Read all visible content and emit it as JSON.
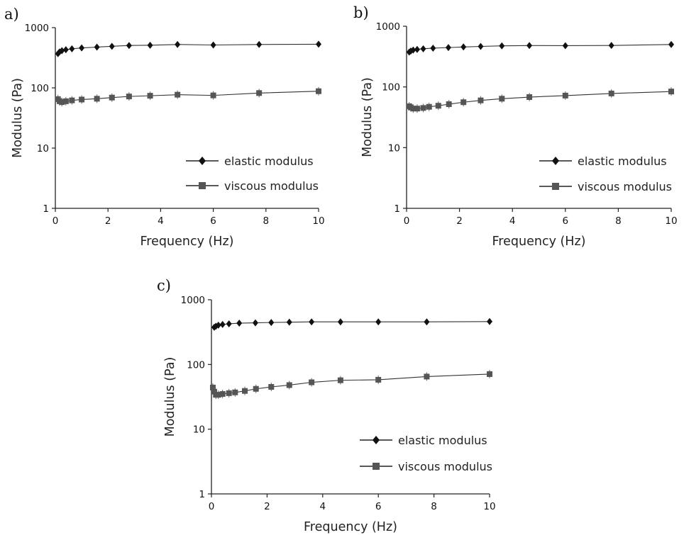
{
  "chart_data": [
    {
      "panel": "a)",
      "type": "line",
      "xlabel": "Frequency (Hz)",
      "ylabel": "Modulus (Pa)",
      "xlim": [
        0,
        10
      ],
      "ylim": [
        1,
        1000
      ],
      "yscale": "log",
      "xticks": [
        "0",
        "2",
        "4",
        "6",
        "8",
        "10"
      ],
      "yticks": [
        "1",
        "10",
        "100",
        "1000"
      ],
      "grid": false,
      "legend_position": "bottom-right",
      "series": [
        {
          "name": "elastic modulus",
          "marker": "diamond",
          "color": "#111111",
          "x": [
            0.1,
            0.16,
            0.25,
            0.4,
            0.63,
            1.0,
            1.58,
            2.15,
            2.8,
            3.6,
            4.64,
            6.0,
            7.74,
            10.0
          ],
          "y": [
            370,
            395,
            415,
            430,
            445,
            460,
            475,
            490,
            505,
            510,
            525,
            515,
            525,
            530
          ]
        },
        {
          "name": "viscous modulus",
          "marker": "square",
          "color": "#555555",
          "x": [
            0.1,
            0.16,
            0.25,
            0.4,
            0.63,
            1.0,
            1.58,
            2.15,
            2.8,
            3.6,
            4.64,
            6.0,
            7.74,
            10.0
          ],
          "y": [
            65,
            60,
            58,
            60,
            62,
            64,
            66,
            69,
            72,
            74,
            77,
            75,
            82,
            88
          ]
        }
      ]
    },
    {
      "panel": "b)",
      "type": "line",
      "xlabel": "Frequency (Hz)",
      "ylabel": "Modulus (Pa)",
      "xlim": [
        0,
        10
      ],
      "ylim": [
        1,
        1000
      ],
      "yscale": "log",
      "xticks": [
        "0",
        "2",
        "4",
        "6",
        "8",
        "10"
      ],
      "yticks": [
        "1",
        "10",
        "100",
        "1000"
      ],
      "grid": false,
      "legend_position": "bottom-right",
      "series": [
        {
          "name": "elastic modulus",
          "marker": "diamond",
          "color": "#111111",
          "x": [
            0.1,
            0.16,
            0.25,
            0.4,
            0.63,
            1.0,
            1.58,
            2.15,
            2.8,
            3.6,
            4.64,
            6.0,
            7.74,
            10.0
          ],
          "y": [
            375,
            390,
            405,
            415,
            425,
            435,
            445,
            455,
            465,
            475,
            480,
            478,
            482,
            500
          ]
        },
        {
          "name": "viscous modulus",
          "marker": "square",
          "color": "#555555",
          "x": [
            0.1,
            0.16,
            0.25,
            0.4,
            0.63,
            0.85,
            1.2,
            1.6,
            2.15,
            2.8,
            3.6,
            4.64,
            6.0,
            7.74,
            10.0
          ],
          "y": [
            48,
            46,
            44,
            44,
            45,
            47,
            49,
            52,
            56,
            60,
            64,
            68,
            72,
            78,
            84
          ]
        }
      ]
    },
    {
      "panel": "c)",
      "type": "line",
      "xlabel": "Frequency (Hz)",
      "ylabel": "Modulus (Pa)",
      "xlim": [
        0,
        10
      ],
      "ylim": [
        1,
        1000
      ],
      "yscale": "log",
      "xticks": [
        "0",
        "2",
        "4",
        "6",
        "8",
        "10"
      ],
      "yticks": [
        "1",
        "10",
        "100",
        "1000"
      ],
      "grid": false,
      "legend_position": "bottom-right",
      "series": [
        {
          "name": "elastic modulus",
          "marker": "diamond",
          "color": "#111111",
          "x": [
            0.1,
            0.16,
            0.25,
            0.4,
            0.63,
            1.0,
            1.58,
            2.15,
            2.8,
            3.6,
            4.64,
            6.0,
            7.74,
            10.0
          ],
          "y": [
            375,
            390,
            405,
            415,
            425,
            435,
            440,
            445,
            450,
            455,
            455,
            455,
            455,
            460
          ]
        },
        {
          "name": "viscous modulus",
          "marker": "square",
          "color": "#555555",
          "x": [
            0.05,
            0.1,
            0.16,
            0.25,
            0.4,
            0.63,
            0.85,
            1.2,
            1.6,
            2.15,
            2.8,
            3.6,
            4.64,
            6.0,
            7.74,
            10.0
          ],
          "y": [
            44,
            38,
            34,
            34,
            35,
            36,
            37,
            39,
            42,
            45,
            48,
            53,
            57,
            58,
            65,
            71
          ]
        }
      ]
    }
  ]
}
